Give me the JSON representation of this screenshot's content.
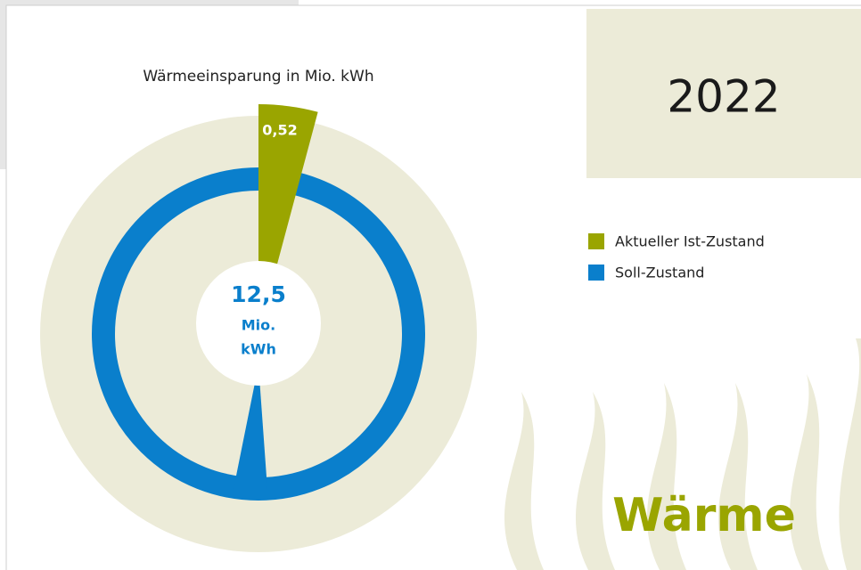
{
  "chart_data": {
    "type": "radial",
    "title": "Wärmeeinsparung in Mio. kWh",
    "series": [
      {
        "name": "Aktueller Ist-Zustand",
        "color": "#9aa500",
        "values": [
          0.52
        ],
        "value_labels": [
          "0,52"
        ]
      },
      {
        "name": "Soll-Zustand",
        "color": "#0a7fcc",
        "values": [
          12.5
        ],
        "value_labels": [
          "12,5"
        ]
      }
    ],
    "center_unit": [
      "Mio.",
      "kWh"
    ],
    "year": "2022",
    "heading": "Wärme"
  }
}
